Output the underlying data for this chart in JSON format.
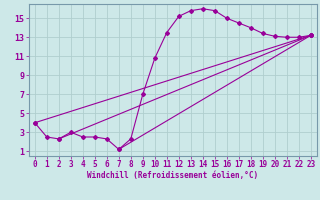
{
  "title": "",
  "xlabel": "Windchill (Refroidissement éolien,°C)",
  "background_color": "#cde8e8",
  "plot_bg_color": "#cde8e8",
  "line_color": "#990099",
  "marker": "D",
  "marker_size": 2,
  "line_width": 0.8,
  "xlim": [
    -0.5,
    23.5
  ],
  "ylim": [
    0.5,
    16.5
  ],
  "xticks": [
    0,
    1,
    2,
    3,
    4,
    5,
    6,
    7,
    8,
    9,
    10,
    11,
    12,
    13,
    14,
    15,
    16,
    17,
    18,
    19,
    20,
    21,
    22,
    23
  ],
  "yticks": [
    1,
    3,
    5,
    7,
    9,
    11,
    13,
    15
  ],
  "grid_color": "#b0cece",
  "series": [
    {
      "x": [
        0,
        1,
        2,
        3,
        4,
        5,
        6,
        7,
        8,
        9,
        10,
        11,
        12,
        13,
        14,
        15,
        16,
        17,
        18,
        19,
        20,
        21,
        22,
        23
      ],
      "y": [
        4.0,
        2.5,
        2.3,
        3.0,
        2.5,
        2.5,
        2.3,
        1.2,
        2.3,
        7.0,
        10.8,
        13.5,
        15.2,
        15.8,
        16.0,
        15.8,
        15.0,
        14.5,
        14.0,
        13.4,
        13.1,
        13.0,
        13.0,
        13.2
      ]
    },
    {
      "x": [
        0,
        23
      ],
      "y": [
        4.0,
        13.2
      ]
    },
    {
      "x": [
        2,
        23
      ],
      "y": [
        2.3,
        13.2
      ]
    },
    {
      "x": [
        7,
        23
      ],
      "y": [
        1.2,
        13.2
      ]
    }
  ],
  "tick_fontsize": 5.5,
  "xlabel_fontsize": 5.5
}
